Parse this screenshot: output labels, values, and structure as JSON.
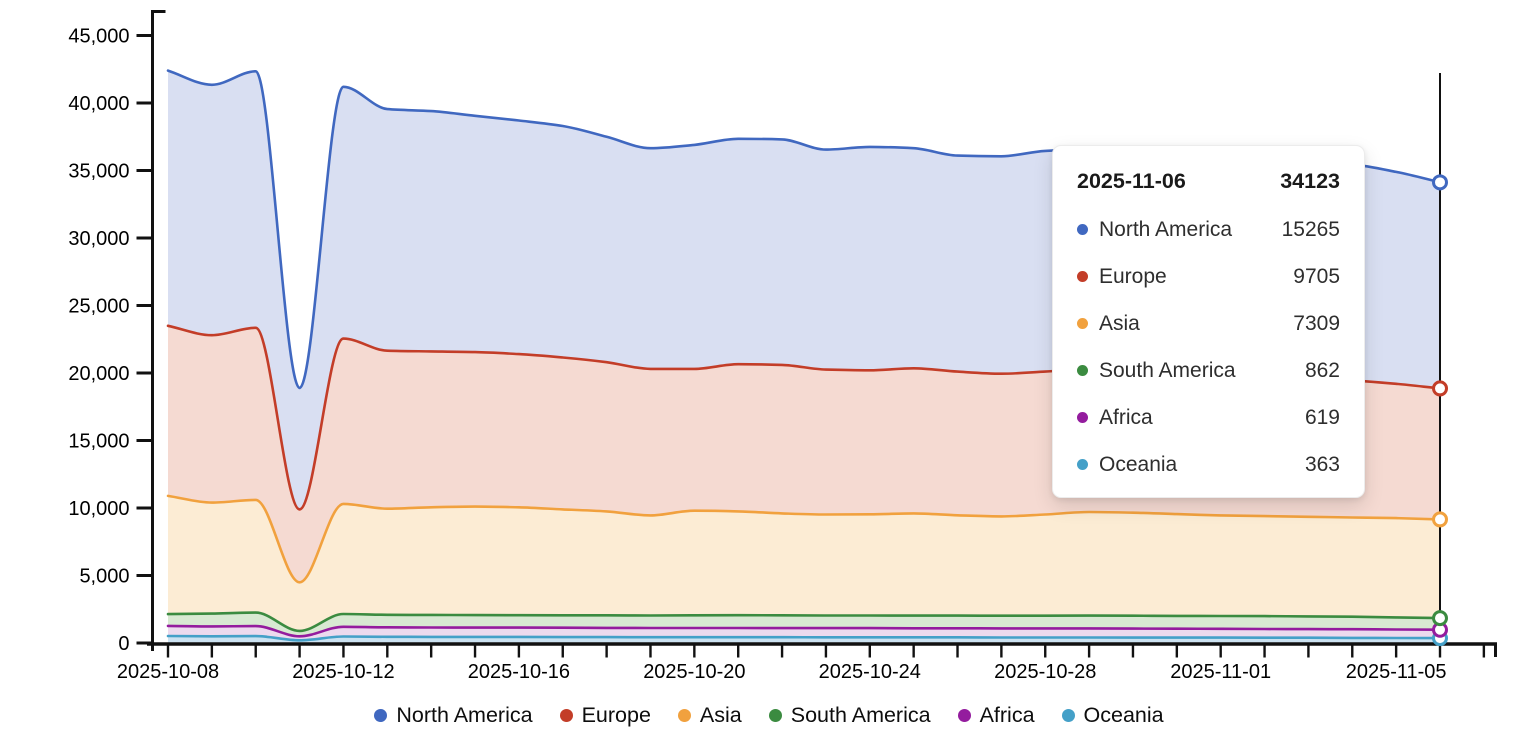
{
  "chart_data": {
    "type": "area",
    "stacked": true,
    "title": "",
    "xlabel": "",
    "ylabel": "",
    "ylim": [
      0,
      45000
    ],
    "y_tick_step": 5000,
    "y_tick_labels": [
      "0",
      "5,000",
      "10,000",
      "15,000",
      "20,000",
      "25,000",
      "30,000",
      "35,000",
      "40,000",
      "45,000"
    ],
    "x": [
      "2025-10-08",
      "2025-10-09",
      "2025-10-10",
      "2025-10-11",
      "2025-10-12",
      "2025-10-13",
      "2025-10-14",
      "2025-10-15",
      "2025-10-16",
      "2025-10-17",
      "2025-10-18",
      "2025-10-19",
      "2025-10-20",
      "2025-10-21",
      "2025-10-22",
      "2025-10-23",
      "2025-10-24",
      "2025-10-25",
      "2025-10-26",
      "2025-10-27",
      "2025-10-28",
      "2025-10-29",
      "2025-10-30",
      "2025-10-31",
      "2025-11-01",
      "2025-11-02",
      "2025-11-03",
      "2025-11-04",
      "2025-11-05",
      "2025-11-06"
    ],
    "x_tick_labels": [
      "2025-10-08",
      "2025-10-12",
      "2025-10-16",
      "2025-10-20",
      "2025-10-24",
      "2025-10-28",
      "2025-11-01",
      "2025-11-05"
    ],
    "x_tick_label_indices": [
      0,
      4,
      8,
      12,
      16,
      20,
      24,
      28
    ],
    "grid": false,
    "legend_position": "bottom",
    "series": [
      {
        "name": "North America",
        "color": "#4068c0",
        "fill": "#d9dff2",
        "values": [
          18900,
          18550,
          19000,
          9000,
          18650,
          17900,
          17800,
          17500,
          17300,
          17150,
          16700,
          16350,
          16600,
          16700,
          16700,
          16300,
          16550,
          16300,
          16000,
          16100,
          16350,
          16250,
          16150,
          16000,
          16000,
          16000,
          16050,
          16000,
          15700,
          15265
        ]
      },
      {
        "name": "Europe",
        "color": "#c33d28",
        "fill": "#f5dad2",
        "values": [
          12600,
          12400,
          12750,
          5400,
          12250,
          11700,
          11550,
          11450,
          11350,
          11250,
          11050,
          10850,
          10500,
          10900,
          11000,
          10730,
          10670,
          10750,
          10640,
          10570,
          10580,
          10600,
          10500,
          10450,
          10350,
          10300,
          10250,
          10150,
          9950,
          9705
        ]
      },
      {
        "name": "Asia",
        "color": "#f1a13e",
        "fill": "#fcecd4",
        "values": [
          8760,
          8220,
          8350,
          3600,
          8150,
          7860,
          7970,
          8030,
          7990,
          7850,
          7700,
          7410,
          7750,
          7690,
          7550,
          7480,
          7490,
          7570,
          7430,
          7360,
          7500,
          7670,
          7630,
          7540,
          7450,
          7410,
          7380,
          7350,
          7350,
          7309
        ]
      },
      {
        "name": "South America",
        "color": "#3b8b40",
        "fill": "#d8e9d2",
        "values": [
          870,
          950,
          1000,
          400,
          950,
          930,
          930,
          930,
          920,
          920,
          930,
          930,
          940,
          950,
          950,
          940,
          940,
          940,
          940,
          940,
          940,
          950,
          950,
          950,
          950,
          950,
          940,
          930,
          900,
          862
        ]
      },
      {
        "name": "Africa",
        "color": "#941c9e",
        "fill": "#ecdaee",
        "values": [
          750,
          730,
          740,
          300,
          720,
          700,
          700,
          690,
          690,
          690,
          680,
          680,
          680,
          680,
          670,
          680,
          680,
          670,
          670,
          670,
          670,
          670,
          670,
          660,
          650,
          650,
          640,
          640,
          630,
          619
        ]
      },
      {
        "name": "Oceania",
        "color": "#44a0c8",
        "fill": "#cce2f1",
        "values": [
          520,
          500,
          510,
          200,
          480,
          460,
          450,
          450,
          450,
          440,
          440,
          430,
          430,
          430,
          430,
          420,
          420,
          420,
          420,
          410,
          410,
          410,
          400,
          400,
          400,
          390,
          390,
          380,
          370,
          363
        ]
      }
    ],
    "crosshair": {
      "date": "2025-11-06",
      "index": 29,
      "color": "#111111"
    }
  },
  "tooltip": {
    "date": "2025-11-06",
    "total": "34123",
    "rows": [
      {
        "name": "North America",
        "value": "15265",
        "color": "#4068c0"
      },
      {
        "name": "Europe",
        "value": "9705",
        "color": "#c33d28"
      },
      {
        "name": "Asia",
        "value": "7309",
        "color": "#f1a13e"
      },
      {
        "name": "South America",
        "value": "862",
        "color": "#3b8b40"
      },
      {
        "name": "Africa",
        "value": "619",
        "color": "#941c9e"
      },
      {
        "name": "Oceania",
        "value": "363",
        "color": "#44a0c8"
      }
    ]
  },
  "legend": {
    "items": [
      {
        "label": "North America",
        "color": "#4068c0"
      },
      {
        "label": "Europe",
        "color": "#c33d28"
      },
      {
        "label": "Asia",
        "color": "#f1a13e"
      },
      {
        "label": "South America",
        "color": "#3b8b40"
      },
      {
        "label": "Africa",
        "color": "#941c9e"
      },
      {
        "label": "Oceania",
        "color": "#44a0c8"
      }
    ]
  }
}
